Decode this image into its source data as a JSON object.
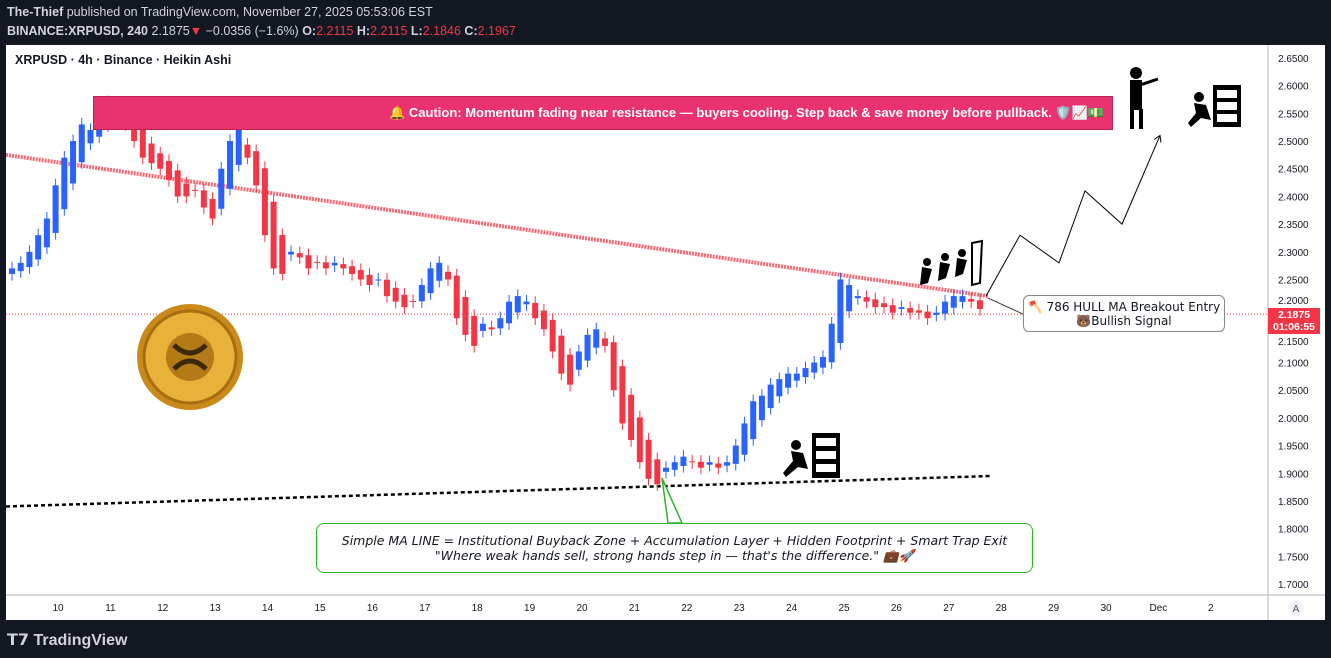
{
  "header": {
    "author": "The-Thief",
    "published": "published on TradingView.com, November 27, 2025 05:53:06 EST",
    "symbol": "BINANCE:XRPUSD, 240",
    "last": "2.1875",
    "change": "−0.0356 (−1.6%)",
    "o_label": "O:",
    "o": "2.2115",
    "h_label": "H:",
    "h": "2.2115",
    "l_label": "L:",
    "l": "2.1846",
    "c_label": "C:",
    "c": "2.1967"
  },
  "legend": "XRPUSD · 4h · Binance · Heikin Ashi",
  "banner": "🔔 Caution: Momentum fading near resistance — buyers cooling. Step back & save money before pullback. 🛡️📈💵",
  "callout": {
    "line1": "Simple MA LINE = Institutional Buyback Zone + Accumulation Layer + Hidden Footprint + Smart Trap Exit",
    "line2": "\"Where weak hands sell, strong hands step in — that's the difference.\" 💼🚀"
  },
  "entry_note": {
    "line1": "🪓 786 HULL MA Breakout Entry",
    "line2": "🐻Bullish Signal"
  },
  "price_label": {
    "price": "2.1875",
    "countdown": "01:06:55"
  },
  "footer": {
    "brand": "TradingView"
  },
  "axis_mode_button": "A",
  "colors": {
    "up": "#2962ff",
    "down": "#f23645",
    "hull_ma": "#f23645",
    "banner": "#e9326f",
    "callout_border": "#2bb52b"
  },
  "chart_data": {
    "type": "candlestick",
    "style": "Heikin Ashi",
    "interval": "4h",
    "ylim": [
      1.68,
      2.67
    ],
    "y_ticks": [
      "2.6500",
      "2.6000",
      "2.5500",
      "2.5000",
      "2.4500",
      "2.4000",
      "2.3500",
      "2.3000",
      "2.2500",
      "2.2000",
      "2.1500",
      "2.1000",
      "2.0500",
      "2.0000",
      "1.9500",
      "1.9000",
      "1.8500",
      "1.8000",
      "1.7500",
      "1.7000"
    ],
    "x_ticks": [
      "10",
      "11",
      "12",
      "13",
      "14",
      "15",
      "16",
      "17",
      "18",
      "19",
      "20",
      "21",
      "22",
      "23",
      "24",
      "25",
      "26",
      "27",
      "28",
      "29",
      "30",
      "Dec",
      "2"
    ],
    "close": [
      2.27,
      2.28,
      2.3,
      2.33,
      2.36,
      2.42,
      2.47,
      2.5,
      2.53,
      2.52,
      2.55,
      2.57,
      2.56,
      2.53,
      2.5,
      2.47,
      2.46,
      2.45,
      2.43,
      2.4,
      2.4,
      2.41,
      2.38,
      2.36,
      2.45,
      2.5,
      2.53,
      2.47,
      2.42,
      2.33,
      2.27,
      2.26,
      2.3,
      2.29,
      2.27,
      2.28,
      2.27,
      2.28,
      2.27,
      2.26,
      2.25,
      2.24,
      2.25,
      2.22,
      2.21,
      2.2,
      2.21,
      2.24,
      2.27,
      2.28,
      2.25,
      2.18,
      2.15,
      2.13,
      2.17,
      2.16,
      2.18,
      2.21,
      2.22,
      2.21,
      2.18,
      2.16,
      2.12,
      2.08,
      2.06,
      2.12,
      2.15,
      2.16,
      2.13,
      2.05,
      1.99,
      1.96,
      1.92,
      1.89,
      1.88,
      1.91,
      1.92,
      1.93,
      1.92,
      1.91,
      1.92,
      1.91,
      1.92,
      1.95,
      1.99,
      2.03,
      2.04,
      2.06,
      2.07,
      2.08,
      2.08,
      2.09,
      2.1,
      2.11,
      2.17,
      2.25,
      2.24,
      2.22,
      2.21,
      2.2,
      2.2,
      2.19,
      2.2,
      2.19,
      2.19,
      2.18,
      2.19,
      2.21,
      2.22,
      2.22,
      2.21,
      2.1967
    ],
    "hull_ma_line": {
      "start": 2.475,
      "end": 2.22
    },
    "simple_ma_line": {
      "start": 1.84,
      "end": 1.895
    },
    "projection_path": [
      2.22,
      2.33,
      2.28,
      2.41,
      2.35,
      2.51
    ]
  }
}
